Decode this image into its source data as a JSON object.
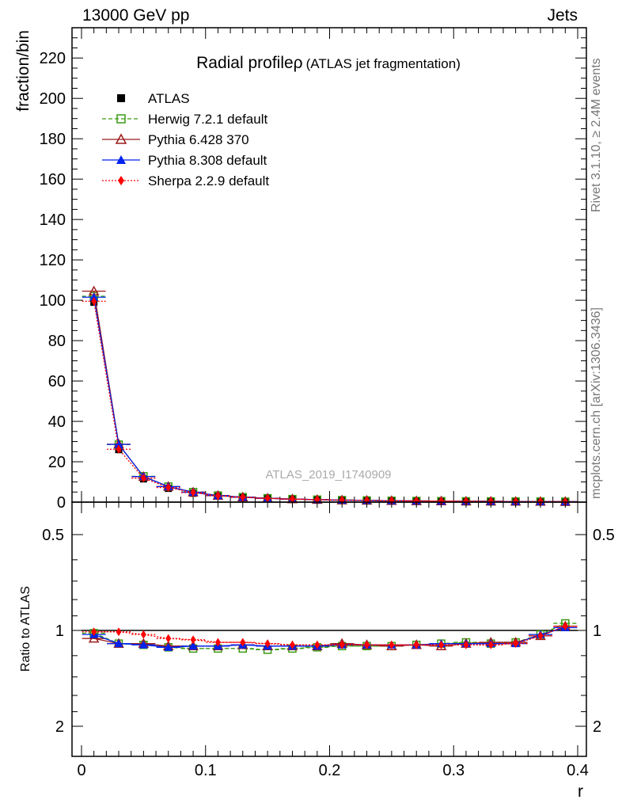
{
  "header": {
    "left": "13000 GeV pp",
    "right": "Jets",
    "side_rivet": "Rivet 3.1.10, ≥ 2.4M events",
    "side_mcplots": "mcplots.cern.ch [arXiv:1306.3436]"
  },
  "chart_data": [
    {
      "type": "scatter",
      "title": "Radial profileρ",
      "subtitle": "(ATLAS jet fragmentation)",
      "watermark": "ATLAS_2019_I1740909",
      "xlabel": "r",
      "ylabel": "fraction/bin",
      "xlim": [
        -0.01,
        0.4
      ],
      "ylim": [
        0,
        235
      ],
      "yticks": [
        0,
        20,
        40,
        60,
        80,
        100,
        120,
        140,
        160,
        180,
        200,
        220
      ],
      "ytick_labels": [
        "0",
        "20",
        "40",
        "60",
        "80",
        "100",
        "120",
        "140",
        "160",
        "180",
        "200",
        "220"
      ],
      "legend_position": "top-left",
      "x": [
        0.01,
        0.03,
        0.05,
        0.07,
        0.09,
        0.11,
        0.13,
        0.15,
        0.17,
        0.19,
        0.21,
        0.23,
        0.25,
        0.27,
        0.29,
        0.31,
        0.33,
        0.35,
        0.37,
        0.39
      ],
      "series": [
        {
          "name": "ATLAS",
          "color": "#000000",
          "marker": "square-filled",
          "line": "none",
          "values": [
            99,
            26,
            11.5,
            6.8,
            4.4,
            2.9,
            2.2,
            1.7,
            1.35,
            1.1,
            0.9,
            0.75,
            0.62,
            0.52,
            0.45,
            0.38,
            0.33,
            0.29,
            0.26,
            0.23
          ]
        },
        {
          "name": "Herwig 7.2.1 default",
          "color": "#3a9a10",
          "marker": "square-open",
          "line": "dashed",
          "values": [
            102,
            28.5,
            12.8,
            7.7,
            5.0,
            3.3,
            2.5,
            1.95,
            1.53,
            1.24,
            1.01,
            0.84,
            0.69,
            0.58,
            0.5,
            0.42,
            0.37,
            0.32,
            0.27,
            0.22
          ]
        },
        {
          "name": "Pythia 6.428 370",
          "color": "#9b1b1b",
          "marker": "triangle-open",
          "line": "solid",
          "values": [
            104.5,
            28.7,
            12.6,
            7.7,
            4.9,
            3.25,
            2.45,
            1.9,
            1.5,
            1.22,
            0.98,
            0.83,
            0.69,
            0.58,
            0.5,
            0.42,
            0.37,
            0.32,
            0.27,
            0.22
          ]
        },
        {
          "name": "Pythia 8.308 default",
          "color": "#0022ee",
          "marker": "triangle-filled",
          "line": "solid",
          "values": [
            101.5,
            28.6,
            12.7,
            7.7,
            4.9,
            3.25,
            2.45,
            1.9,
            1.5,
            1.22,
            0.99,
            0.83,
            0.69,
            0.58,
            0.49,
            0.42,
            0.37,
            0.32,
            0.27,
            0.22
          ]
        },
        {
          "name": "Sherpa 2.2.9 default",
          "color": "#ff0000",
          "marker": "diamond-filled",
          "line": "dotted",
          "values": [
            99.5,
            26.2,
            11.9,
            7.2,
            4.7,
            3.15,
            2.38,
            1.86,
            1.48,
            1.21,
            0.98,
            0.82,
            0.68,
            0.57,
            0.49,
            0.42,
            0.37,
            0.32,
            0.27,
            0.22
          ]
        }
      ]
    },
    {
      "type": "scatter",
      "ylabel": "Ratio to ATLAS",
      "xlabel": "r",
      "xlim": [
        -0.01,
        0.4
      ],
      "ylim": [
        0.4,
        2.3
      ],
      "xticks": [
        0,
        0.1,
        0.2,
        0.3,
        0.4
      ],
      "xtick_labels": [
        "0",
        "0.1",
        "0.2",
        "0.3",
        "0.4"
      ],
      "yticks": [
        0.5,
        1,
        2
      ],
      "ytick_labels": [
        "0.5",
        "1",
        "2"
      ],
      "reference_line": 1,
      "band_color_inner": "#ffff66",
      "band_color_outer": "#ccff99",
      "x": [
        0.01,
        0.03,
        0.05,
        0.07,
        0.09,
        0.11,
        0.13,
        0.15,
        0.17,
        0.19,
        0.21,
        0.23,
        0.25,
        0.27,
        0.29,
        0.31,
        0.33,
        0.35,
        0.37,
        0.39
      ],
      "band_half_width": [
        0.06,
        0.035,
        0.03,
        0.025,
        0.02,
        0.02,
        0.02,
        0.02,
        0.02,
        0.015,
        0.015,
        0.015,
        0.015,
        0.015,
        0.015,
        0.015,
        0.015,
        0.02,
        0.04,
        0.05
      ],
      "series": [
        {
          "name": "Herwig 7.2.1 default",
          "color": "#3a9a10",
          "marker": "square-open",
          "line": "dashed",
          "values": [
            1.02,
            1.1,
            1.11,
            1.13,
            1.14,
            1.14,
            1.14,
            1.15,
            1.14,
            1.13,
            1.12,
            1.12,
            1.12,
            1.11,
            1.1,
            1.09,
            1.1,
            1.09,
            1.03,
            0.95
          ]
        },
        {
          "name": "Pythia 6.428 370",
          "color": "#9b1b1b",
          "marker": "triangle-open",
          "line": "solid",
          "values": [
            1.06,
            1.1,
            1.1,
            1.12,
            1.12,
            1.12,
            1.11,
            1.12,
            1.12,
            1.12,
            1.1,
            1.11,
            1.12,
            1.11,
            1.12,
            1.1,
            1.09,
            1.09,
            1.04,
            0.97
          ]
        },
        {
          "name": "Pythia 8.308 default",
          "color": "#0022ee",
          "marker": "triangle-filled",
          "line": "solid",
          "values": [
            1.03,
            1.1,
            1.11,
            1.13,
            1.12,
            1.12,
            1.11,
            1.12,
            1.12,
            1.12,
            1.11,
            1.11,
            1.11,
            1.11,
            1.1,
            1.1,
            1.1,
            1.1,
            1.03,
            0.98
          ]
        },
        {
          "name": "Sherpa 2.2.9 default",
          "color": "#ff0000",
          "marker": "diamond-filled",
          "line": "dotted",
          "values": [
            1.01,
            1.01,
            1.03,
            1.06,
            1.07,
            1.09,
            1.09,
            1.1,
            1.11,
            1.11,
            1.11,
            1.11,
            1.11,
            1.11,
            1.11,
            1.11,
            1.11,
            1.1,
            1.04,
            0.97
          ]
        }
      ]
    }
  ]
}
